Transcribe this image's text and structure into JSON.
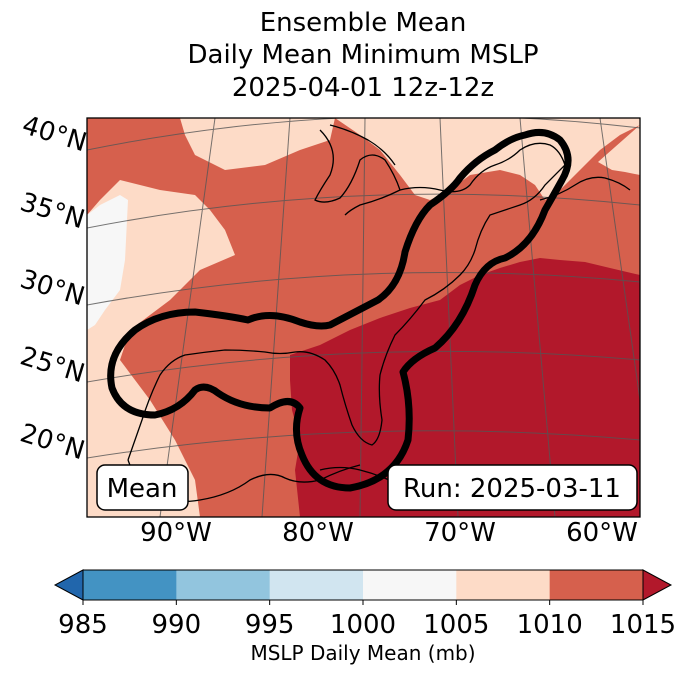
{
  "chart_data": {
    "type": "map",
    "title_lines": [
      "Ensemble Mean",
      "Daily Mean Minimum MSLP",
      "2025-04-01 12z-12z"
    ],
    "lat_labels": [
      "40°N",
      "35°N",
      "30°N",
      "25°N",
      "20°N"
    ],
    "lon_labels": [
      "90°W",
      "80°W",
      "70°W",
      "60°W"
    ],
    "corner_left": "Mean",
    "corner_right": "Run: 2025-03-11",
    "colorbar": {
      "label": "MSLP Daily Mean (mb)",
      "ticks": [
        "985",
        "990",
        "995",
        "1000",
        "1005",
        "1010",
        "1015"
      ],
      "bins": [
        {
          "range": "<985",
          "color": "#2166ac"
        },
        {
          "range": "985-990",
          "color": "#4393c3"
        },
        {
          "range": "990-995",
          "color": "#92c5de"
        },
        {
          "range": "995-1000",
          "color": "#d1e5f0"
        },
        {
          "range": "1000-1005",
          "color": "#f7f7f7"
        },
        {
          "range": "1005-1010",
          "color": "#fddbc7"
        },
        {
          "range": "1010-1015",
          "color": "#d6604d"
        },
        {
          "range": ">1015",
          "color": "#b2182b"
        }
      ]
    },
    "contour_color": "#000000"
  }
}
